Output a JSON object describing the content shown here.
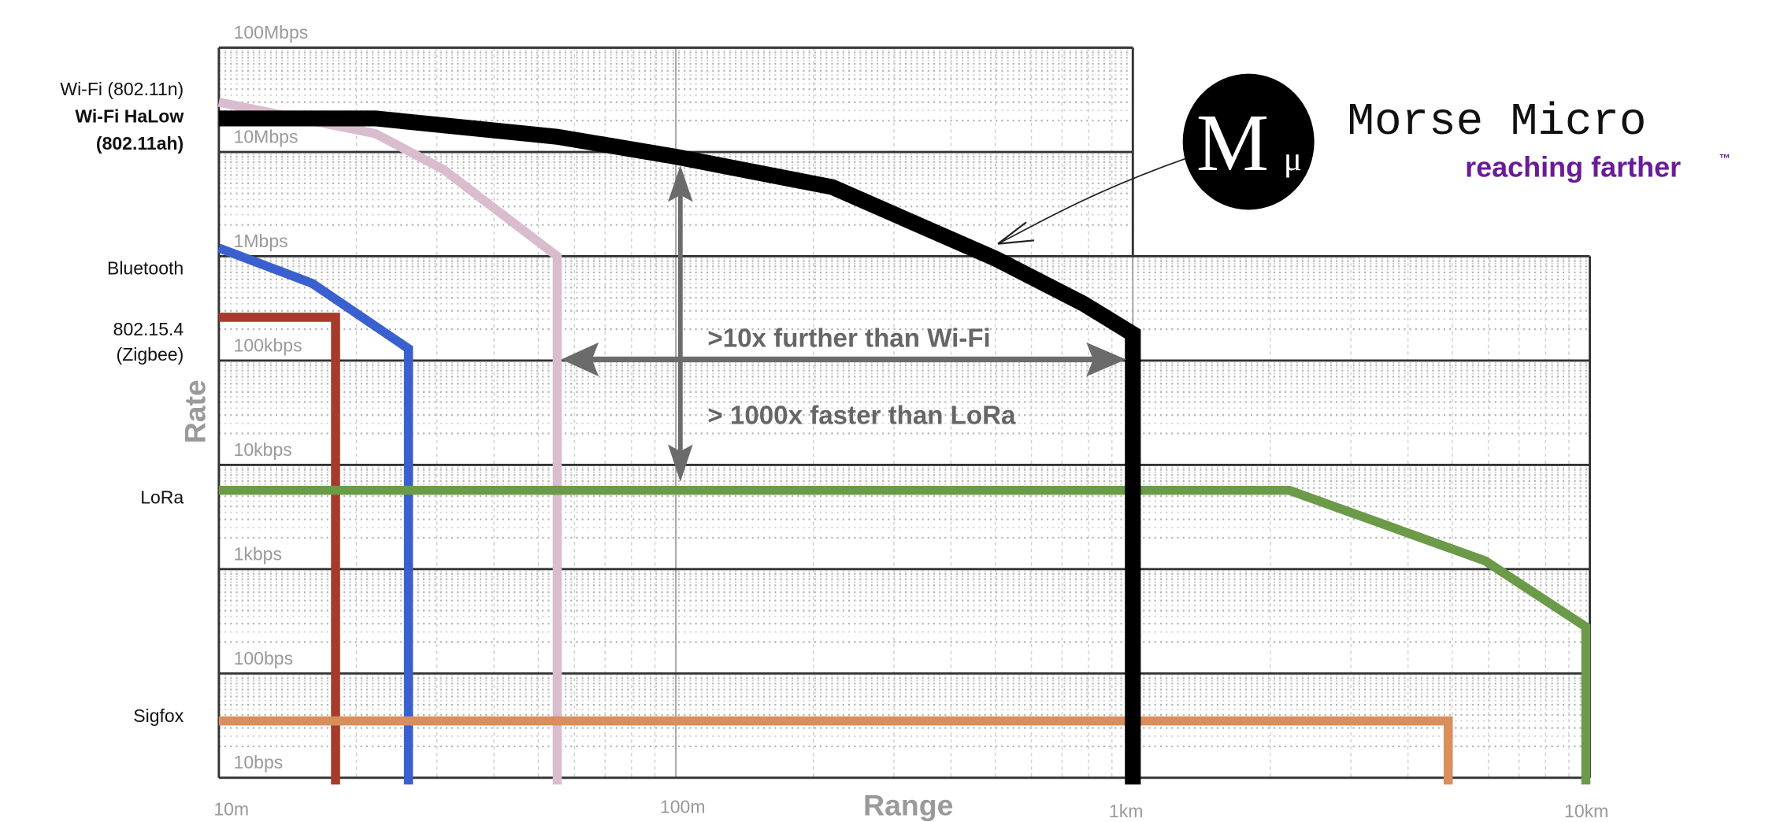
{
  "chart_data": {
    "type": "line",
    "xlabel": "Range",
    "ylabel": "Rate",
    "x_scale": "log",
    "y_scale": "log",
    "xlim_m": [
      10,
      10000
    ],
    "ylim_bps": [
      10,
      100000000
    ],
    "grid": true,
    "x_ticks": [
      {
        "value": 10,
        "label": "10m"
      },
      {
        "value": 100,
        "label": "100m"
      },
      {
        "value": 1000,
        "label": "1km"
      },
      {
        "value": 10000,
        "label": "10km"
      }
    ],
    "y_ticks": [
      {
        "value": 100000000,
        "label": "100Mbps"
      },
      {
        "value": 10000000,
        "label": "10Mbps"
      },
      {
        "value": 1000000,
        "label": "1Mbps"
      },
      {
        "value": 100000,
        "label": "100kbps"
      },
      {
        "value": 10000,
        "label": "10kbps"
      },
      {
        "value": 1000,
        "label": "1kbps"
      },
      {
        "value": 100,
        "label": "100bps"
      },
      {
        "value": 10,
        "label": "10bps"
      }
    ],
    "series": [
      {
        "name": "Wi-Fi (802.11n)",
        "color": "#d9bccd",
        "points": [
          [
            10,
            30000000
          ],
          [
            22,
            15000000
          ],
          [
            31,
            6800000
          ],
          [
            55,
            1000000
          ],
          [
            55,
            10
          ]
        ]
      },
      {
        "name": "Bluetooth",
        "color": "#3a60cf",
        "points": [
          [
            10,
            1200000
          ],
          [
            16,
            550000
          ],
          [
            26,
            130000
          ],
          [
            26,
            10
          ]
        ]
      },
      {
        "name": "802.15.4 (Zigbee)",
        "color": "#a63a2b",
        "points": [
          [
            10,
            260000
          ],
          [
            18,
            260000
          ],
          [
            18,
            10
          ]
        ]
      },
      {
        "name": "LoRa",
        "color": "#6b9a48",
        "points": [
          [
            10,
            5700
          ],
          [
            2200,
            5700
          ],
          [
            5900,
            1200
          ],
          [
            9800,
            280
          ],
          [
            9800,
            10
          ]
        ]
      },
      {
        "name": "Sigfox",
        "color": "#d98e5c",
        "points": [
          [
            10,
            35
          ],
          [
            4900,
            35
          ],
          [
            4900,
            10
          ]
        ]
      },
      {
        "name": "Wi-Fi HaLow (802.11ah)",
        "color": "#000000",
        "points": [
          [
            10,
            21000000
          ],
          [
            22,
            21000000
          ],
          [
            55,
            14000000
          ],
          [
            100,
            9000000
          ],
          [
            220,
            4600000
          ],
          [
            500,
            950000
          ],
          [
            780,
            350000
          ],
          [
            1000,
            180000
          ],
          [
            1000,
            10
          ]
        ]
      }
    ],
    "series_labels": {
      "wifi": "Wi-Fi (802.11n)",
      "halow_1": "Wi-Fi HaLow",
      "halow_2": "(802.11ah)",
      "bluetooth": "Bluetooth",
      "zigbee_1": "802.15.4",
      "zigbee_2": "(Zigbee)",
      "lora": "LoRa",
      "sigfox": "Sigfox"
    },
    "annotations": {
      "range_arrow": ">10x further than Wi-Fi",
      "rate_arrow": "> 1000x faster than LoRa"
    }
  },
  "logo": {
    "monogram": "M",
    "mu": "μ",
    "name": "Morse Micro",
    "tagline": "reaching farther",
    "trademark": "™",
    "tagline_color": "#6a1b9a"
  }
}
